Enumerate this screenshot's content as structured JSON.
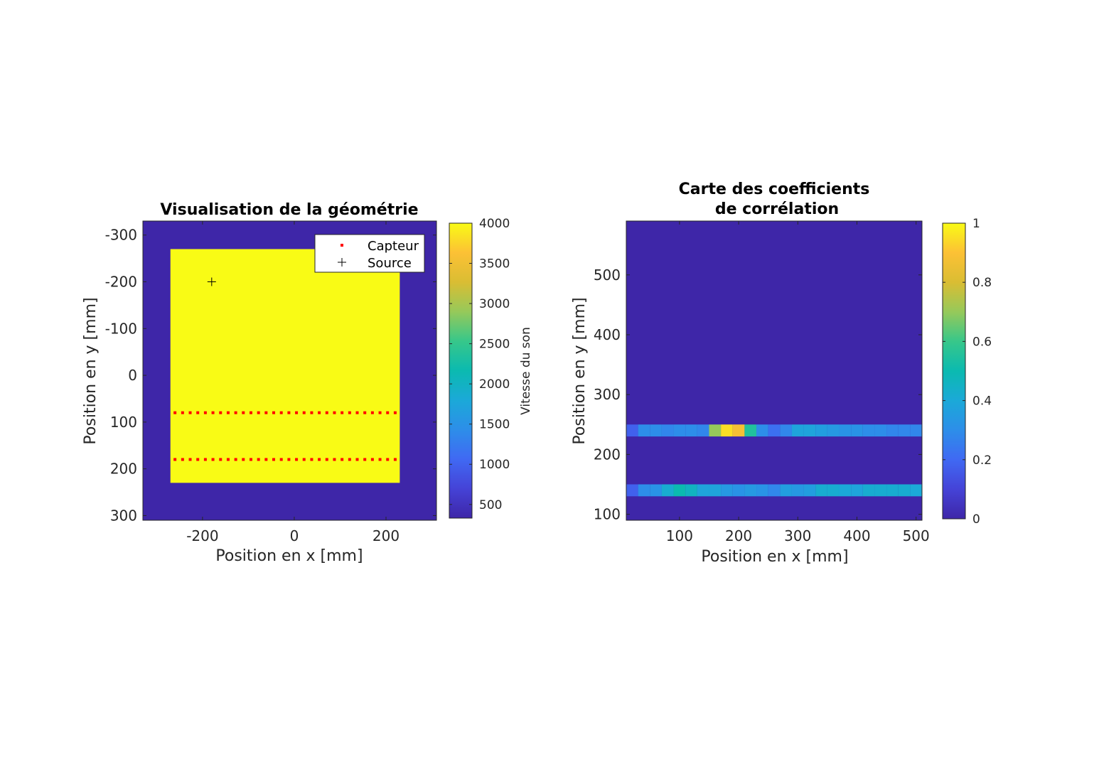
{
  "chart_data": [
    {
      "type": "heatmap",
      "title": "Visualisation de la géométrie",
      "xlabel": "Position en x [mm]",
      "ylabel": "Position en y [mm]",
      "xlim": [
        -330,
        310
      ],
      "ylim": [
        -330,
        310
      ],
      "y_reversed": true,
      "xticks": [
        -200,
        0,
        200
      ],
      "yticks": [
        -300,
        -200,
        -100,
        0,
        100,
        200,
        300
      ],
      "xtick_labels": [
        "-200",
        "0",
        "200"
      ],
      "ytick_labels": [
        "-300",
        "-200",
        "-100",
        "0",
        "100",
        "200",
        "300"
      ],
      "background_value": 330,
      "region": {
        "x": [
          -270,
          230
        ],
        "y": [
          -270,
          230
        ],
        "value": 4000
      },
      "sensor_rows": [
        {
          "y": 80,
          "x_start": -260,
          "x_end": 220,
          "count": 30
        },
        {
          "y": 180,
          "x_start": -260,
          "x_end": 220,
          "count": 30
        }
      ],
      "source": {
        "x": -180,
        "y": -200
      },
      "legend": {
        "position": "top-right",
        "entries": [
          {
            "label": "Capteur",
            "marker": "dot",
            "color": "#ff0000"
          },
          {
            "label": "Source",
            "marker": "plus",
            "color": "#000000"
          }
        ]
      },
      "colorbar": {
        "label": "Vitesse du son",
        "range": [
          330,
          4000
        ],
        "ticks": [
          500,
          1000,
          1500,
          2000,
          2500,
          3000,
          3500,
          4000
        ],
        "tick_labels": [
          "500",
          "1000",
          "1500",
          "2000",
          "2500",
          "3000",
          "3500",
          "4000"
        ]
      }
    },
    {
      "type": "heatmap",
      "title": [
        "Carte des coefficients",
        "de corrélation"
      ],
      "xlabel": "Position en x [mm]",
      "ylabel": "Position en y [mm]",
      "xlim": [
        10,
        510
      ],
      "ylim": [
        90,
        590
      ],
      "xticks": [
        100,
        200,
        300,
        400,
        500
      ],
      "yticks": [
        100,
        200,
        300,
        400,
        500
      ],
      "xtick_labels": [
        "100",
        "200",
        "300",
        "400",
        "500"
      ],
      "ytick_labels": [
        "100",
        "200",
        "300",
        "400",
        "500"
      ],
      "background_value": 0,
      "cell_width": 20,
      "x_start": 10,
      "rows": [
        {
          "y_center": 240,
          "height": 20,
          "values": [
            0.18,
            0.3,
            0.3,
            0.28,
            0.3,
            0.3,
            0.28,
            0.7,
            0.95,
            0.88,
            0.55,
            0.3,
            0.22,
            0.28,
            0.38,
            0.38,
            0.36,
            0.34,
            0.32,
            0.32,
            0.3,
            0.3,
            0.28,
            0.28,
            0.28,
            0.15
          ]
        },
        {
          "y_center": 140,
          "height": 20,
          "values": [
            0.18,
            0.3,
            0.32,
            0.42,
            0.5,
            0.46,
            0.38,
            0.38,
            0.34,
            0.32,
            0.34,
            0.32,
            0.28,
            0.36,
            0.34,
            0.36,
            0.42,
            0.42,
            0.4,
            0.38,
            0.42,
            0.42,
            0.42,
            0.42,
            0.4,
            0.24
          ]
        }
      ],
      "colorbar": {
        "range": [
          0,
          1
        ],
        "ticks": [
          0,
          0.2,
          0.4,
          0.6,
          0.8,
          1
        ],
        "tick_labels": [
          "0",
          "0.2",
          "0.4",
          "0.6",
          "0.8",
          "1"
        ]
      }
    }
  ]
}
